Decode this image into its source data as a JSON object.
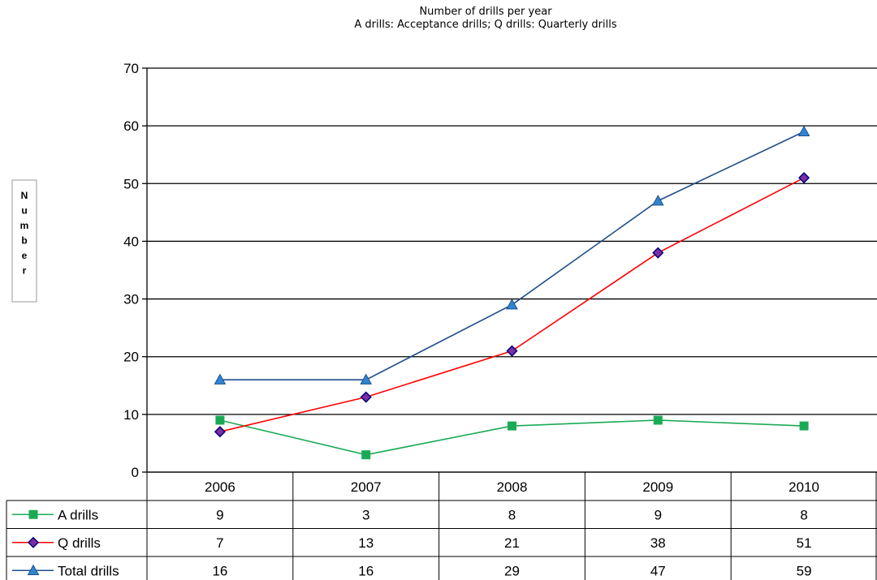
{
  "chart_data": {
    "type": "line",
    "title": "Number of drills per year",
    "subtitle": "A drills: Acceptance drills; Q drills: Quarterly drills",
    "ylabel": "Number",
    "xlabel": "",
    "categories": [
      "2006",
      "2007",
      "2008",
      "2009",
      "2010"
    ],
    "ylim": [
      0,
      70
    ],
    "yticks": [
      0,
      10,
      20,
      30,
      40,
      50,
      60,
      70
    ],
    "grid": true,
    "legend": "data-table-below",
    "series": [
      {
        "name": "A drills",
        "values": [
          9,
          3,
          8,
          9,
          8
        ],
        "color": "#1aaa55",
        "marker": "square"
      },
      {
        "name": "Q drills",
        "values": [
          7,
          13,
          21,
          38,
          51
        ],
        "color": "#ff0000",
        "marker": "diamond",
        "marker_fill": "#7b2fa0",
        "marker_edge": "#000080"
      },
      {
        "name": "Total drills",
        "values": [
          16,
          16,
          29,
          47,
          59
        ],
        "color": "#1f4e8c",
        "marker": "triangle",
        "marker_fill": "#2e86d1"
      }
    ]
  }
}
